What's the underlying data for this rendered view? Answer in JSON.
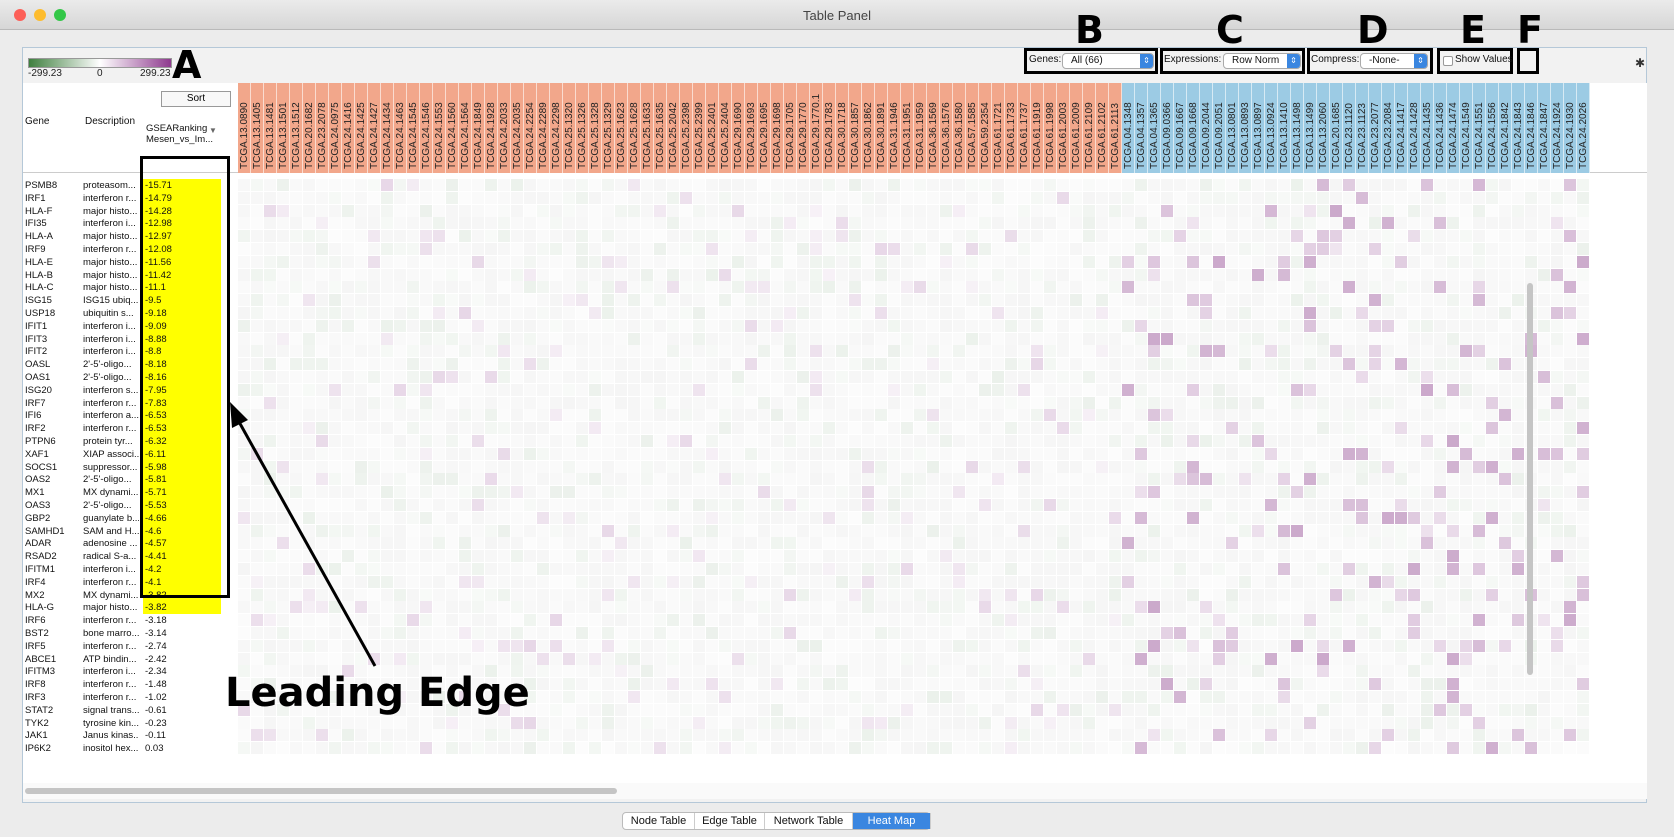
{
  "window": {
    "title": "Table Panel",
    "lights": [
      "#fc5f57",
      "#fdbc2e",
      "#33c748"
    ]
  },
  "legend": {
    "min_label": "-299.23",
    "mid_label": "0",
    "max_label": "299.23",
    "low_color": "#3f7f3f",
    "high_color": "#8e3a8e"
  },
  "callouts": {
    "a": "A",
    "b": "B",
    "c": "C",
    "d": "D",
    "e": "E",
    "f": "F",
    "leading_edge": "Leading Edge"
  },
  "controls": {
    "genes_label": "Genes:",
    "genes_value": "All (66)",
    "expressions_label": "Expressions:",
    "expressions_value": "Row Norm",
    "compress_label": "Compress:",
    "compress_value": "-None-",
    "show_values_label": "Show Values"
  },
  "table": {
    "col_gene": "Gene",
    "col_description": "Description",
    "sort_label": "Sort",
    "col_rank_line1": "GSEARanking",
    "col_rank_line2": "Mesen_vs_Im...",
    "mesenchymal_color": "#f2a78b",
    "immunoreactive_color": "#9ccbe4",
    "mesenchymal_samples": [
      "TCGA.13.0890",
      "TCGA.13.1405",
      "TCGA.13.1481",
      "TCGA.13.1501",
      "TCGA.13.1512",
      "TCGA.20.1682",
      "TCGA.23.2078",
      "TCGA.24.0975",
      "TCGA.24.1416",
      "TCGA.24.1425",
      "TCGA.24.1427",
      "TCGA.24.1434",
      "TCGA.24.1463",
      "TCGA.24.1545",
      "TCGA.24.1546",
      "TCGA.24.1553",
      "TCGA.24.1560",
      "TCGA.24.1564",
      "TCGA.24.1849",
      "TCGA.24.1928",
      "TCGA.24.2033",
      "TCGA.24.2035",
      "TCGA.24.2254",
      "TCGA.24.2289",
      "TCGA.24.2298",
      "TCGA.25.1320",
      "TCGA.25.1326",
      "TCGA.25.1328",
      "TCGA.25.1329",
      "TCGA.25.1623",
      "TCGA.25.1628",
      "TCGA.25.1633",
      "TCGA.25.1635",
      "TCGA.25.2042",
      "TCGA.25.2398",
      "TCGA.25.2399",
      "TCGA.25.2401",
      "TCGA.25.2404",
      "TCGA.29.1690",
      "TCGA.29.1693",
      "TCGA.29.1695",
      "TCGA.29.1698",
      "TCGA.29.1705",
      "TCGA.29.1770",
      "TCGA.29.1770.1",
      "TCGA.29.1783",
      "TCGA.30.1718",
      "TCGA.30.1857",
      "TCGA.30.1862",
      "TCGA.30.1891",
      "TCGA.31.1946",
      "TCGA.31.1951",
      "TCGA.31.1959",
      "TCGA.36.1569",
      "TCGA.36.1576",
      "TCGA.36.1580",
      "TCGA.57.1585",
      "TCGA.59.2354",
      "TCGA.61.1721",
      "TCGA.61.1733",
      "TCGA.61.1737",
      "TCGA.61.1919",
      "TCGA.61.1998",
      "TCGA.61.2003",
      "TCGA.61.2009",
      "TCGA.61.2109",
      "TCGA.61.2102",
      "TCGA.61.2113"
    ],
    "immunoreactive_samples": [
      "TCGA.04.1348",
      "TCGA.04.1357",
      "TCGA.04.1365",
      "TCGA.09.0366",
      "TCGA.09.1667",
      "TCGA.09.1668",
      "TCGA.09.2044",
      "TCGA.09.2051",
      "TCGA.13.0801",
      "TCGA.13.0893",
      "TCGA.13.0897",
      "TCGA.13.0924",
      "TCGA.13.1410",
      "TCGA.13.1498",
      "TCGA.13.1499",
      "TCGA.13.2060",
      "TCGA.20.1685",
      "TCGA.23.1120",
      "TCGA.23.1123",
      "TCGA.23.2077",
      "TCGA.23.2084",
      "TCGA.24.1417",
      "TCGA.24.1428",
      "TCGA.24.1435",
      "TCGA.24.1436",
      "TCGA.24.1474",
      "TCGA.24.1549",
      "TCGA.24.1551",
      "TCGA.24.1556",
      "TCGA.24.1842",
      "TCGA.24.1843",
      "TCGA.24.1846",
      "TCGA.24.1847",
      "TCGA.24.1924",
      "TCGA.24.1930",
      "TCGA.24.2026"
    ],
    "rows": [
      {
        "gene": "PSMB8",
        "desc": "proteasom...",
        "value": "-15.71",
        "leading": true
      },
      {
        "gene": "IRF1",
        "desc": "interferon r...",
        "value": "-14.79",
        "leading": true
      },
      {
        "gene": "HLA-F",
        "desc": "major histo...",
        "value": "-14.28",
        "leading": true
      },
      {
        "gene": "IFI35",
        "desc": "interferon i...",
        "value": "-12.98",
        "leading": true
      },
      {
        "gene": "HLA-A",
        "desc": "major histo...",
        "value": "-12.97",
        "leading": true
      },
      {
        "gene": "IRF9",
        "desc": "interferon r...",
        "value": "-12.08",
        "leading": true
      },
      {
        "gene": "HLA-E",
        "desc": "major histo...",
        "value": "-11.56",
        "leading": true
      },
      {
        "gene": "HLA-B",
        "desc": "major histo...",
        "value": "-11.42",
        "leading": true
      },
      {
        "gene": "HLA-C",
        "desc": "major histo...",
        "value": "-11.1",
        "leading": true
      },
      {
        "gene": "ISG15",
        "desc": "ISG15 ubiq...",
        "value": "-9.5",
        "leading": true
      },
      {
        "gene": "USP18",
        "desc": "ubiquitin s...",
        "value": "-9.18",
        "leading": true
      },
      {
        "gene": "IFIT1",
        "desc": "interferon i...",
        "value": "-9.09",
        "leading": true
      },
      {
        "gene": "IFIT3",
        "desc": "interferon i...",
        "value": "-8.88",
        "leading": true
      },
      {
        "gene": "IFIT2",
        "desc": "interferon i...",
        "value": "-8.8",
        "leading": true
      },
      {
        "gene": "OASL",
        "desc": "2'-5'-oligo...",
        "value": "-8.18",
        "leading": true
      },
      {
        "gene": "OAS1",
        "desc": "2'-5'-oligo...",
        "value": "-8.16",
        "leading": true
      },
      {
        "gene": "ISG20",
        "desc": "interferon s...",
        "value": "-7.95",
        "leading": true
      },
      {
        "gene": "IRF7",
        "desc": "interferon r...",
        "value": "-7.83",
        "leading": true
      },
      {
        "gene": "IFI6",
        "desc": "interferon a...",
        "value": "-6.53",
        "leading": true
      },
      {
        "gene": "IRF2",
        "desc": "interferon r...",
        "value": "-6.53",
        "leading": true
      },
      {
        "gene": "PTPN6",
        "desc": "protein tyr...",
        "value": "-6.32",
        "leading": true
      },
      {
        "gene": "XAF1",
        "desc": "XIAP associ...",
        "value": "-6.11",
        "leading": true
      },
      {
        "gene": "SOCS1",
        "desc": "suppressor...",
        "value": "-5.98",
        "leading": true
      },
      {
        "gene": "OAS2",
        "desc": "2'-5'-oligo...",
        "value": "-5.81",
        "leading": true
      },
      {
        "gene": "MX1",
        "desc": "MX dynami...",
        "value": "-5.71",
        "leading": true
      },
      {
        "gene": "OAS3",
        "desc": "2'-5'-oligo...",
        "value": "-5.53",
        "leading": true
      },
      {
        "gene": "GBP2",
        "desc": "guanylate b...",
        "value": "-4.66",
        "leading": true
      },
      {
        "gene": "SAMHD1",
        "desc": "SAM and H...",
        "value": "-4.6",
        "leading": true
      },
      {
        "gene": "ADAR",
        "desc": "adenosine ...",
        "value": "-4.57",
        "leading": true
      },
      {
        "gene": "RSAD2",
        "desc": "radical S-a...",
        "value": "-4.41",
        "leading": true
      },
      {
        "gene": "IFITM1",
        "desc": "interferon i...",
        "value": "-4.2",
        "leading": true
      },
      {
        "gene": "IRF4",
        "desc": "interferon r...",
        "value": "-4.1",
        "leading": true
      },
      {
        "gene": "MX2",
        "desc": "MX dynami...",
        "value": "-3.82",
        "leading": true
      },
      {
        "gene": "HLA-G",
        "desc": "major histo...",
        "value": "-3.82",
        "leading": true
      },
      {
        "gene": "IRF6",
        "desc": "interferon r...",
        "value": "-3.18",
        "leading": false
      },
      {
        "gene": "BST2",
        "desc": "bone marro...",
        "value": "-3.14",
        "leading": false
      },
      {
        "gene": "IRF5",
        "desc": "interferon r...",
        "value": "-2.74",
        "leading": false
      },
      {
        "gene": "ABCE1",
        "desc": "ATP bindin...",
        "value": "-2.42",
        "leading": false
      },
      {
        "gene": "IFITM3",
        "desc": "interferon i...",
        "value": "-2.34",
        "leading": false
      },
      {
        "gene": "IRF8",
        "desc": "interferon r...",
        "value": "-1.48",
        "leading": false
      },
      {
        "gene": "IRF3",
        "desc": "interferon r...",
        "value": "-1.02",
        "leading": false
      },
      {
        "gene": "STAT2",
        "desc": "signal trans...",
        "value": "-0.61",
        "leading": false
      },
      {
        "gene": "TYK2",
        "desc": "tyrosine kin...",
        "value": "-0.23",
        "leading": false
      },
      {
        "gene": "JAK1",
        "desc": "Janus kinas...",
        "value": "-0.11",
        "leading": false
      },
      {
        "gene": "IP6K2",
        "desc": "inositol hex...",
        "value": "0.03",
        "leading": false
      }
    ]
  },
  "tabs": [
    {
      "label": "Node Table",
      "active": false
    },
    {
      "label": "Edge Table",
      "active": false
    },
    {
      "label": "Network Table",
      "active": false
    },
    {
      "label": "Heat Map",
      "active": true
    }
  ]
}
